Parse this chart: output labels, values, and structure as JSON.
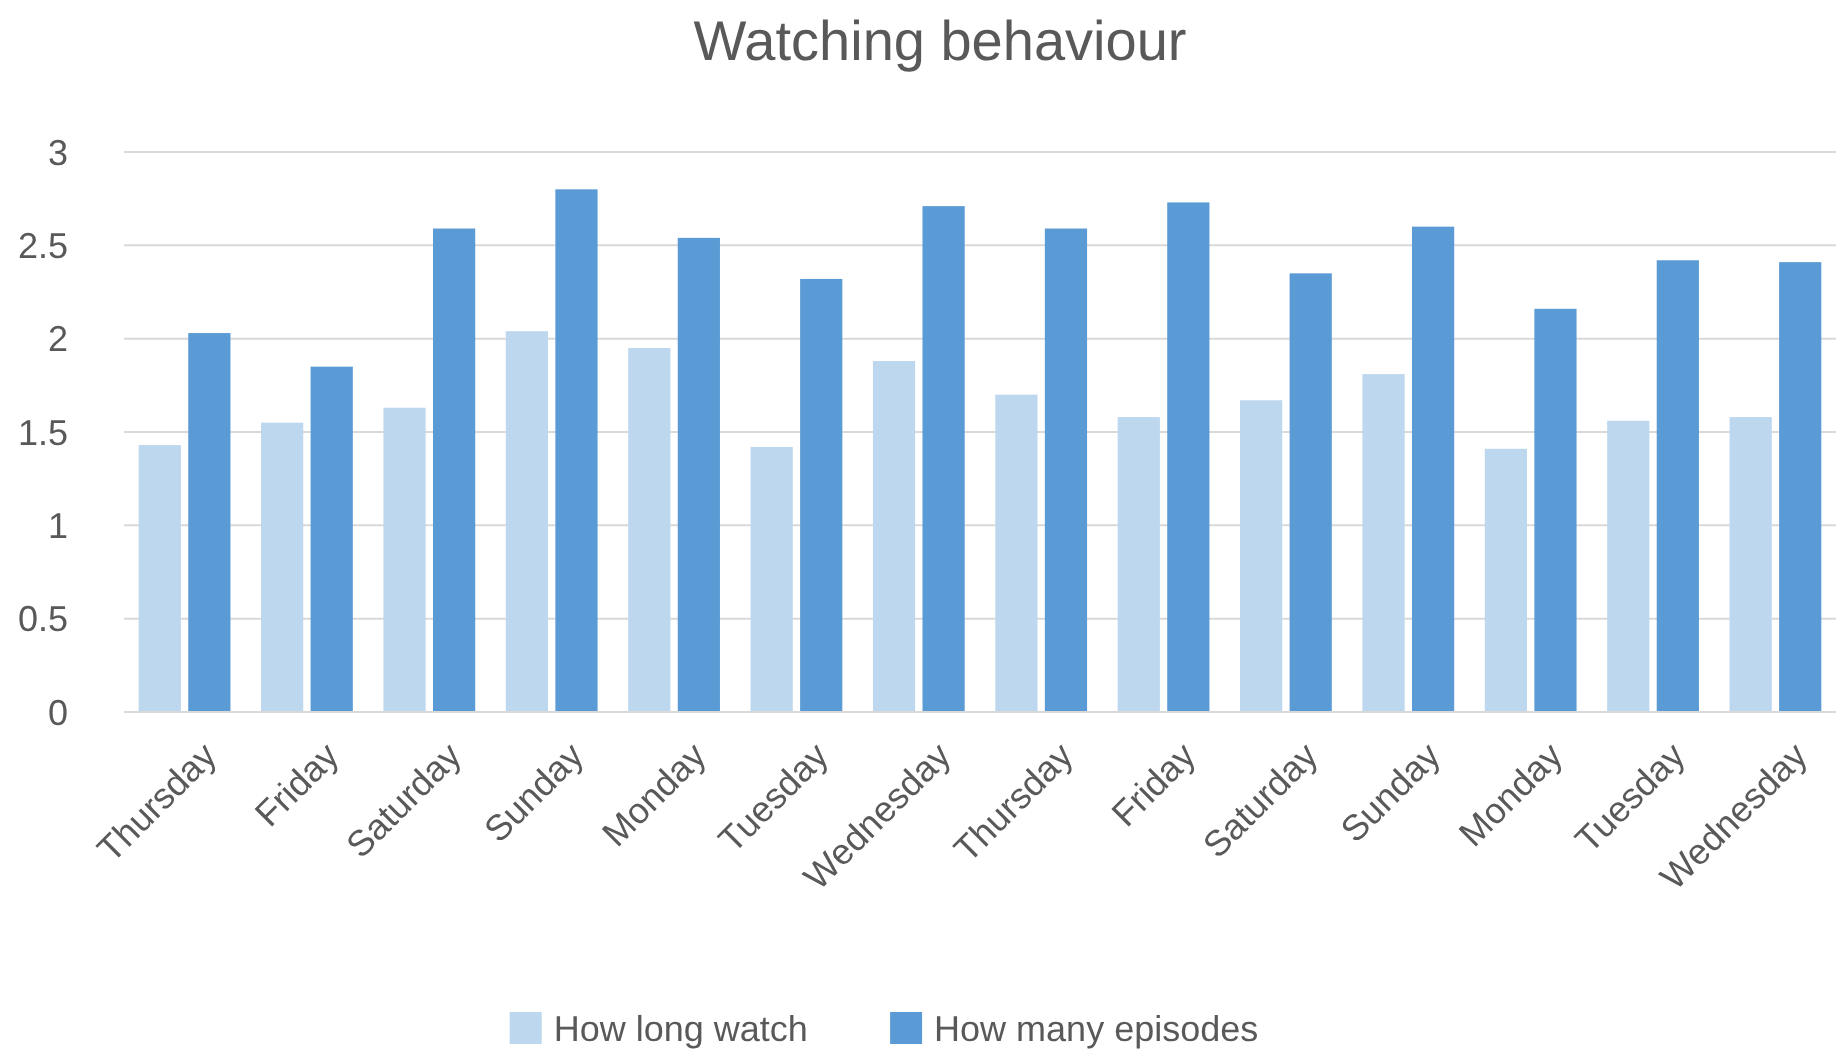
{
  "chart_data": {
    "type": "bar",
    "title": "Watching behaviour",
    "categories": [
      "Thursday",
      "Friday",
      "Saturday",
      "Sunday",
      "Monday",
      "Tuesday",
      "Wednesday",
      "Thursday",
      "Friday",
      "Saturday",
      "Sunday",
      "Monday",
      "Tuesday",
      "Wednesday"
    ],
    "series": [
      {
        "name": "How long watch",
        "color": "#bdd7ee",
        "values": [
          1.43,
          1.55,
          1.63,
          2.04,
          1.95,
          1.42,
          1.88,
          1.7,
          1.58,
          1.67,
          1.81,
          1.41,
          1.56,
          1.58
        ]
      },
      {
        "name": "How many episodes",
        "color": "#5b9bd5",
        "values": [
          2.03,
          1.85,
          2.59,
          2.8,
          2.54,
          2.32,
          2.71,
          2.59,
          2.73,
          2.35,
          2.6,
          2.16,
          2.42,
          2.41
        ]
      }
    ],
    "ylim": [
      0,
      3
    ],
    "yticks": [
      0,
      0.5,
      1,
      1.5,
      2,
      2.5,
      3
    ],
    "grid": "y",
    "legend": "bottom"
  }
}
